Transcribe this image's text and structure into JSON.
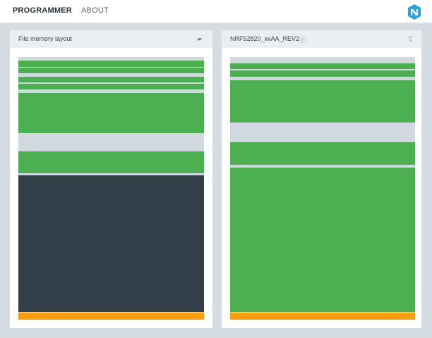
{
  "nav": {
    "programmer_label": "PROGRAMMER",
    "about_label": "ABOUT"
  },
  "file_panel": {
    "title": "File memory layout",
    "icon": "folder-open-icon"
  },
  "device_panel": {
    "title": "NRF52820_xxAA_REV2",
    "info_icon": "info-icon",
    "device_icon": "chip-icon"
  },
  "colors": {
    "region_used": "#4caf50",
    "region_empty": "#d2d8df",
    "region_file_dark": "#323e48",
    "region_bootloader": "#ff9f0a",
    "background": "#d5dce2"
  }
}
